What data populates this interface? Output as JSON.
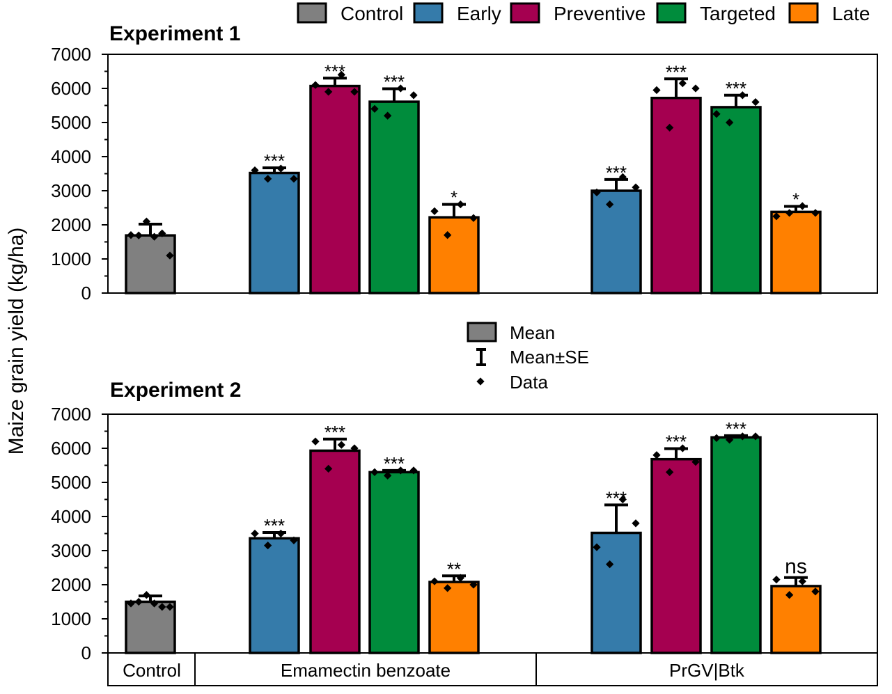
{
  "chart_data": {
    "type": "bar",
    "ylabel": "Maize grain yield (kg/ha)",
    "ylim": [
      0,
      7000
    ],
    "yticks": [
      "0",
      "1000",
      "2000",
      "3000",
      "4000",
      "5000",
      "6000",
      "7000"
    ],
    "legend": [
      {
        "name": "Control",
        "color": "#808080"
      },
      {
        "name": "Early",
        "color": "#357BAA"
      },
      {
        "name": "Preventive",
        "color": "#A50050"
      },
      {
        "name": "Targeted",
        "color": "#008C3C"
      },
      {
        "name": "Late",
        "color": "#FF8000"
      }
    ],
    "key": {
      "mean": "Mean",
      "se": "Mean±SE",
      "data": "Data"
    },
    "groups": [
      "Control",
      "Emamectin benzoate",
      "PrGV|Btk"
    ],
    "panels": [
      {
        "title": "Experiment 1",
        "bars": [
          {
            "group": "Control",
            "treatment": "Control",
            "mean": 1690,
            "se": 330,
            "sig": "",
            "points": [
              1700,
              1690,
              2100,
              1650,
              1750,
              1100
            ]
          },
          {
            "group": "Emamectin benzoate",
            "treatment": "Early",
            "mean": 3520,
            "se": 150,
            "sig": "***",
            "points": [
              3600,
              3350,
              3650,
              3350
            ]
          },
          {
            "group": "Emamectin benzoate",
            "treatment": "Preventive",
            "mean": 6070,
            "se": 230,
            "sig": "***",
            "points": [
              6100,
              5900,
              6400,
              5900
            ]
          },
          {
            "group": "Emamectin benzoate",
            "treatment": "Targeted",
            "mean": 5610,
            "se": 380,
            "sig": "***",
            "points": [
              5400,
              5200,
              6000,
              5800
            ]
          },
          {
            "group": "Emamectin benzoate",
            "treatment": "Late",
            "mean": 2220,
            "se": 380,
            "sig": "*",
            "points": [
              2400,
              1700,
              2600,
              2200
            ]
          },
          {
            "group": "PrGV|Btk",
            "treatment": "Early",
            "mean": 3000,
            "se": 330,
            "sig": "***",
            "points": [
              2950,
              2600,
              3400,
              3100
            ]
          },
          {
            "group": "PrGV|Btk",
            "treatment": "Preventive",
            "mean": 5720,
            "se": 560,
            "sig": "***",
            "points": [
              5950,
              4850,
              6150,
              6000
            ]
          },
          {
            "group": "PrGV|Btk",
            "treatment": "Targeted",
            "mean": 5450,
            "se": 350,
            "sig": "***",
            "points": [
              5250,
              5000,
              5800,
              5600
            ]
          },
          {
            "group": "PrGV|Btk",
            "treatment": "Late",
            "mean": 2380,
            "se": 160,
            "sig": "*",
            "points": [
              2250,
              2350,
              2550,
              2350
            ]
          }
        ]
      },
      {
        "title": "Experiment 2",
        "bars": [
          {
            "group": "Control",
            "treatment": "Control",
            "mean": 1500,
            "se": 170,
            "sig": "",
            "points": [
              1450,
              1500,
              1700,
              1450,
              1350,
              1350
            ]
          },
          {
            "group": "Emamectin benzoate",
            "treatment": "Early",
            "mean": 3360,
            "se": 170,
            "sig": "***",
            "points": [
              3500,
              3150,
              3500,
              3300
            ]
          },
          {
            "group": "Emamectin benzoate",
            "treatment": "Preventive",
            "mean": 5930,
            "se": 340,
            "sig": "***",
            "points": [
              6200,
              5400,
              6100,
              6000
            ]
          },
          {
            "group": "Emamectin benzoate",
            "treatment": "Targeted",
            "mean": 5300,
            "se": 50,
            "sig": "***",
            "points": [
              5300,
              5200,
              5350,
              5350
            ]
          },
          {
            "group": "Emamectin benzoate",
            "treatment": "Late",
            "mean": 2080,
            "se": 180,
            "sig": "**",
            "points": [
              2100,
              1900,
              2200,
              2000
            ]
          },
          {
            "group": "PrGV|Btk",
            "treatment": "Early",
            "mean": 3520,
            "se": 820,
            "sig": "***",
            "points": [
              3100,
              2600,
              4500,
              3800
            ]
          },
          {
            "group": "PrGV|Btk",
            "treatment": "Preventive",
            "mean": 5680,
            "se": 310,
            "sig": "***",
            "points": [
              5800,
              5300,
              6000,
              5600
            ]
          },
          {
            "group": "PrGV|Btk",
            "treatment": "Targeted",
            "mean": 6320,
            "se": 50,
            "sig": "***",
            "points": [
              6300,
              6250,
              6350,
              6350
            ]
          },
          {
            "group": "PrGV|Btk",
            "treatment": "Late",
            "mean": 1960,
            "se": 250,
            "sig": "ns",
            "points": [
              2150,
              1700,
              2100,
              1800
            ]
          }
        ]
      }
    ]
  }
}
